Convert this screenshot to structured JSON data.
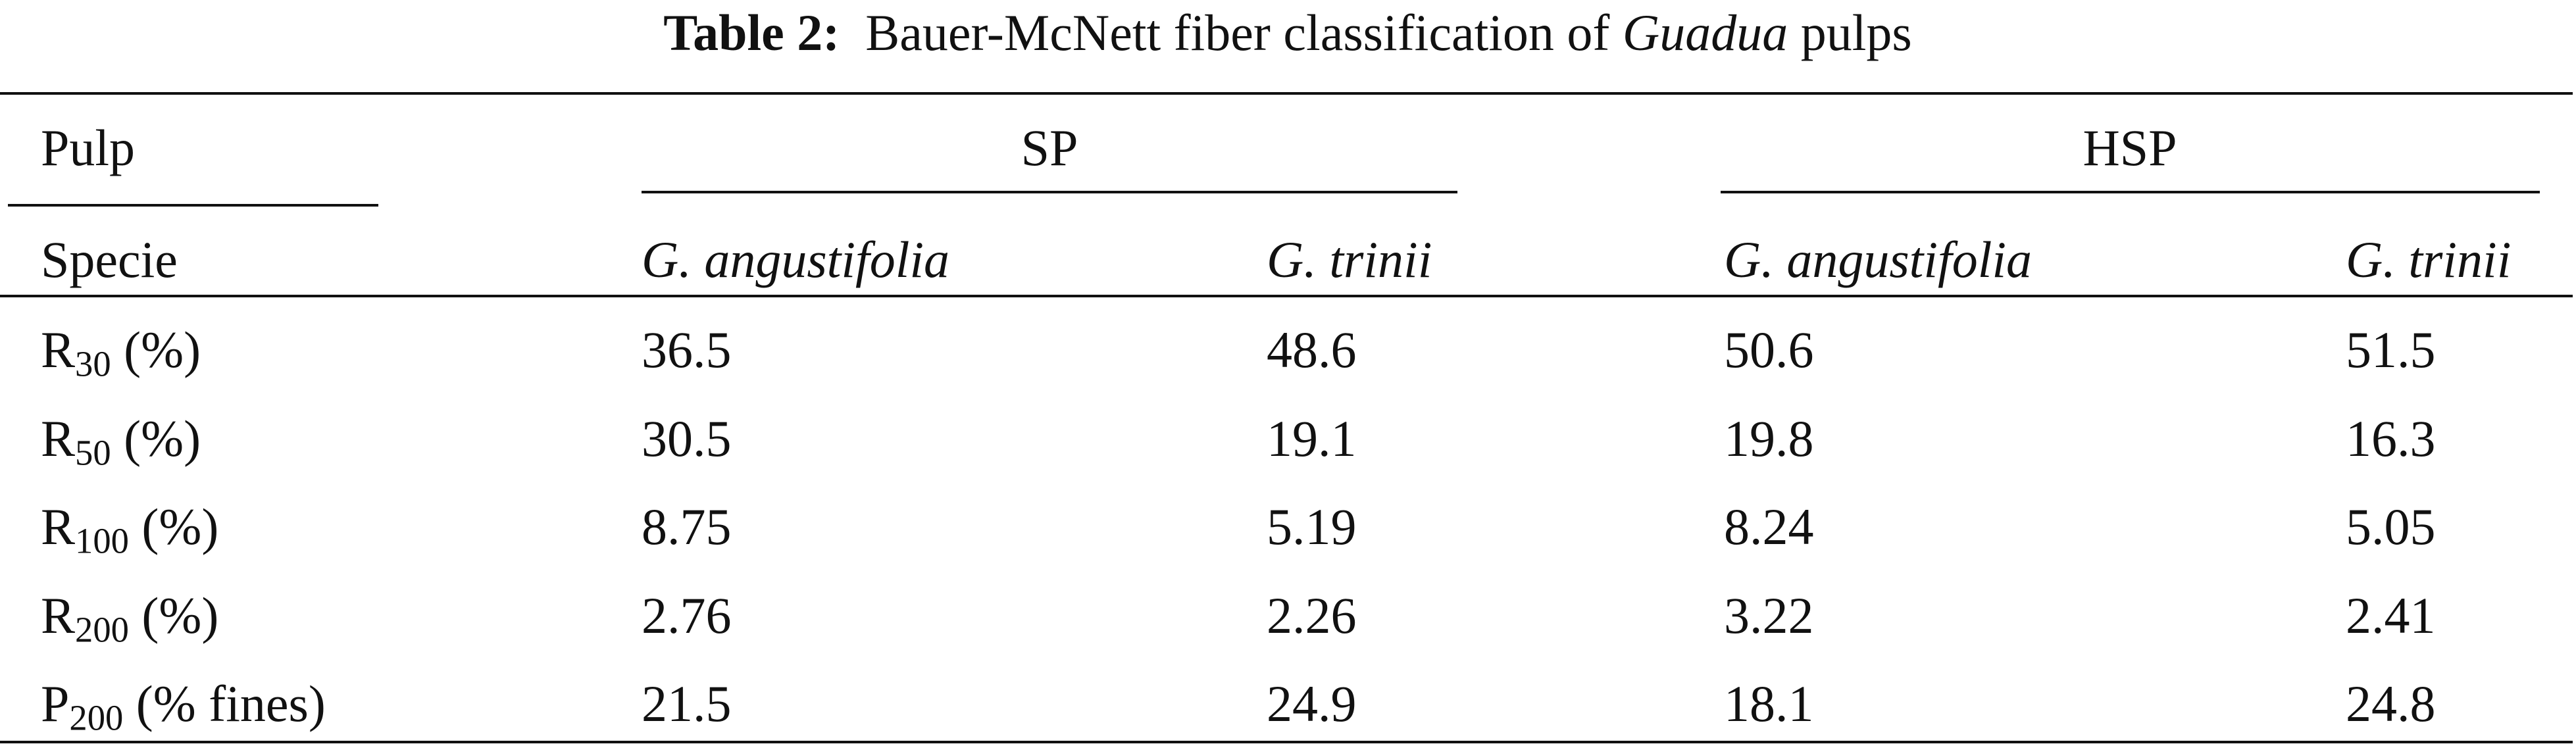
{
  "title": {
    "label": "Table 2:",
    "before": "Bauer-McNett fiber classification of",
    "italic": "Guadua",
    "after": "pulps"
  },
  "table": {
    "header": {
      "pulp": "Pulp",
      "groups": [
        "SP",
        "HSP"
      ],
      "specie": "Specie",
      "species": [
        "G. angustifolia",
        "G. trinii",
        "G. angustifolia",
        "G. trinii"
      ]
    },
    "rows": [
      {
        "label": {
          "main": "R",
          "sub": "30",
          "rest": "(%)"
        },
        "values": [
          36.5,
          48.6,
          50.6,
          51.5
        ]
      },
      {
        "label": {
          "main": "R",
          "sub": "50",
          "rest": "(%)"
        },
        "values": [
          30.5,
          19.1,
          19.8,
          16.3
        ]
      },
      {
        "label": {
          "main": "R",
          "sub": "100",
          "rest": "(%)"
        },
        "values": [
          8.75,
          5.19,
          8.24,
          5.05
        ]
      },
      {
        "label": {
          "main": "R",
          "sub": "200",
          "rest": "(%)"
        },
        "values": [
          2.76,
          2.26,
          3.22,
          2.41
        ]
      },
      {
        "label": {
          "main": "P",
          "sub": "200",
          "rest": "(% fines)"
        },
        "values": [
          21.5,
          24.9,
          18.1,
          24.8
        ]
      }
    ]
  }
}
